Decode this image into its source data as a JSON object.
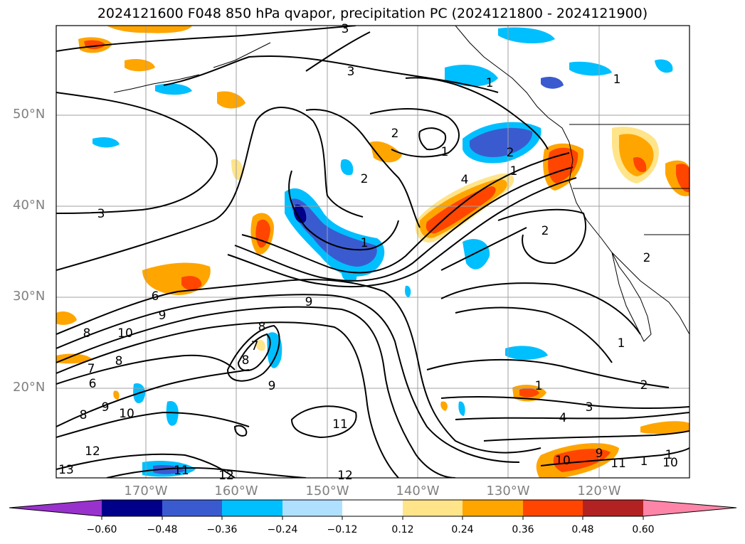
{
  "title": "2024121600 F048 850 hPa qvapor, precipitation PC (2024121800 - 2024121900)",
  "lat_labels": [
    "50°N",
    "40°N",
    "30°N",
    "20°N"
  ],
  "lon_labels": [
    "170°W",
    "160°W",
    "150°W",
    "140°W",
    "130°W",
    "120°W"
  ],
  "colorbar": {
    "ticks": [
      "−0.60",
      "−0.48",
      "−0.36",
      "−0.24",
      "−0.12",
      "0.12",
      "0.24",
      "0.36",
      "0.48",
      "0.60"
    ],
    "colors": [
      "#9932cc",
      "#00008b",
      "#3a5bd0",
      "#00bfff",
      "#b0e0ff",
      "#ffffff",
      "#ffe48a",
      "#ffa500",
      "#ff4500",
      "#b22222",
      "#ff85a8"
    ]
  },
  "contour_labels": [
    "3",
    "3",
    "3",
    "2",
    "1",
    "2",
    "1",
    "2",
    "1",
    "2",
    "6",
    "9",
    "9",
    "10",
    "8",
    "8",
    "7",
    "6",
    "9",
    "8",
    "10",
    "12",
    "13",
    "8",
    "7",
    "8",
    "9",
    "11",
    "11",
    "12",
    "12",
    "1",
    "1",
    "2",
    "3",
    "4",
    "1",
    "10",
    "9",
    "11",
    "1",
    "10",
    "1",
    "2",
    "4",
    "1"
  ],
  "line_color": "#000000",
  "grid_color": "#a0a0a0"
}
